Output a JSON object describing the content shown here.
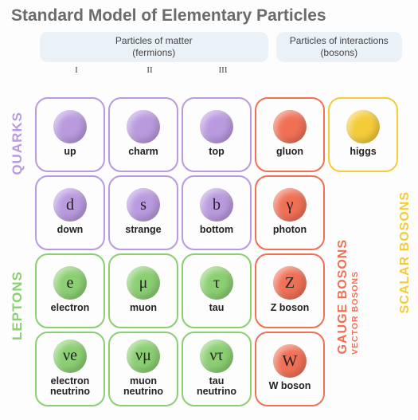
{
  "title": "Standard Model of Elementary Particles",
  "headers": {
    "fermions": "Particles of matter\n(fermions)",
    "bosons": "Particles of interactions\n(bosons)"
  },
  "generations": [
    "I",
    "II",
    "III"
  ],
  "colors": {
    "quark_border": "#b99adf",
    "quark_fill": "#b99adf",
    "lepton_border": "#8bcf72",
    "lepton_fill": "#8bcf72",
    "gauge_border": "#f07055",
    "gauge_fill": "#f07055",
    "scalar_border": "#f4cc3a",
    "scalar_fill": "#f4cc3a",
    "header_bg": "#eaf1f7",
    "title_color": "#6b6b6b"
  },
  "side_labels": {
    "quarks": {
      "text": "QUARKS",
      "color": "#b99adf"
    },
    "leptons": {
      "text": "LEPTONS",
      "color": "#8bcf72"
    },
    "gauge": {
      "text": "GAUGE BOSONS",
      "color": "#f07055"
    },
    "vector": {
      "text": "VECTOR BOSONS",
      "color": "#f07055"
    },
    "scalar": {
      "text": "SCALAR BOSONS",
      "color": "#f4cc3a"
    }
  },
  "cells": [
    {
      "r": 0,
      "c": 0,
      "group": "quark",
      "sym": "",
      "label": "up"
    },
    {
      "r": 0,
      "c": 1,
      "group": "quark",
      "sym": "",
      "label": "charm"
    },
    {
      "r": 0,
      "c": 2,
      "group": "quark",
      "sym": "",
      "label": "top"
    },
    {
      "r": 0,
      "c": 3,
      "group": "gauge",
      "sym": "",
      "label": "gluon"
    },
    {
      "r": 0,
      "c": 4,
      "group": "scalar",
      "sym": "",
      "label": "higgs"
    },
    {
      "r": 1,
      "c": 0,
      "group": "quark",
      "sym": "d",
      "label": "down"
    },
    {
      "r": 1,
      "c": 1,
      "group": "quark",
      "sym": "s",
      "label": "strange"
    },
    {
      "r": 1,
      "c": 2,
      "group": "quark",
      "sym": "b",
      "label": "bottom"
    },
    {
      "r": 1,
      "c": 3,
      "group": "gauge",
      "sym": "γ",
      "label": "photon"
    },
    {
      "r": 2,
      "c": 0,
      "group": "lepton",
      "sym": "e",
      "label": "electron"
    },
    {
      "r": 2,
      "c": 1,
      "group": "lepton",
      "sym": "μ",
      "label": "muon"
    },
    {
      "r": 2,
      "c": 2,
      "group": "lepton",
      "sym": "τ",
      "label": "tau"
    },
    {
      "r": 2,
      "c": 3,
      "group": "gauge",
      "sym": "Z",
      "label": "Z boson"
    },
    {
      "r": 3,
      "c": 0,
      "group": "lepton",
      "sym": "νe",
      "label": "electron\nneutrino"
    },
    {
      "r": 3,
      "c": 1,
      "group": "lepton",
      "sym": "νμ",
      "label": "muon\nneutrino"
    },
    {
      "r": 3,
      "c": 2,
      "group": "lepton",
      "sym": "ντ",
      "label": "tau\nneutrino"
    },
    {
      "r": 3,
      "c": 3,
      "group": "gauge",
      "sym": "W",
      "label": "W boson"
    }
  ]
}
